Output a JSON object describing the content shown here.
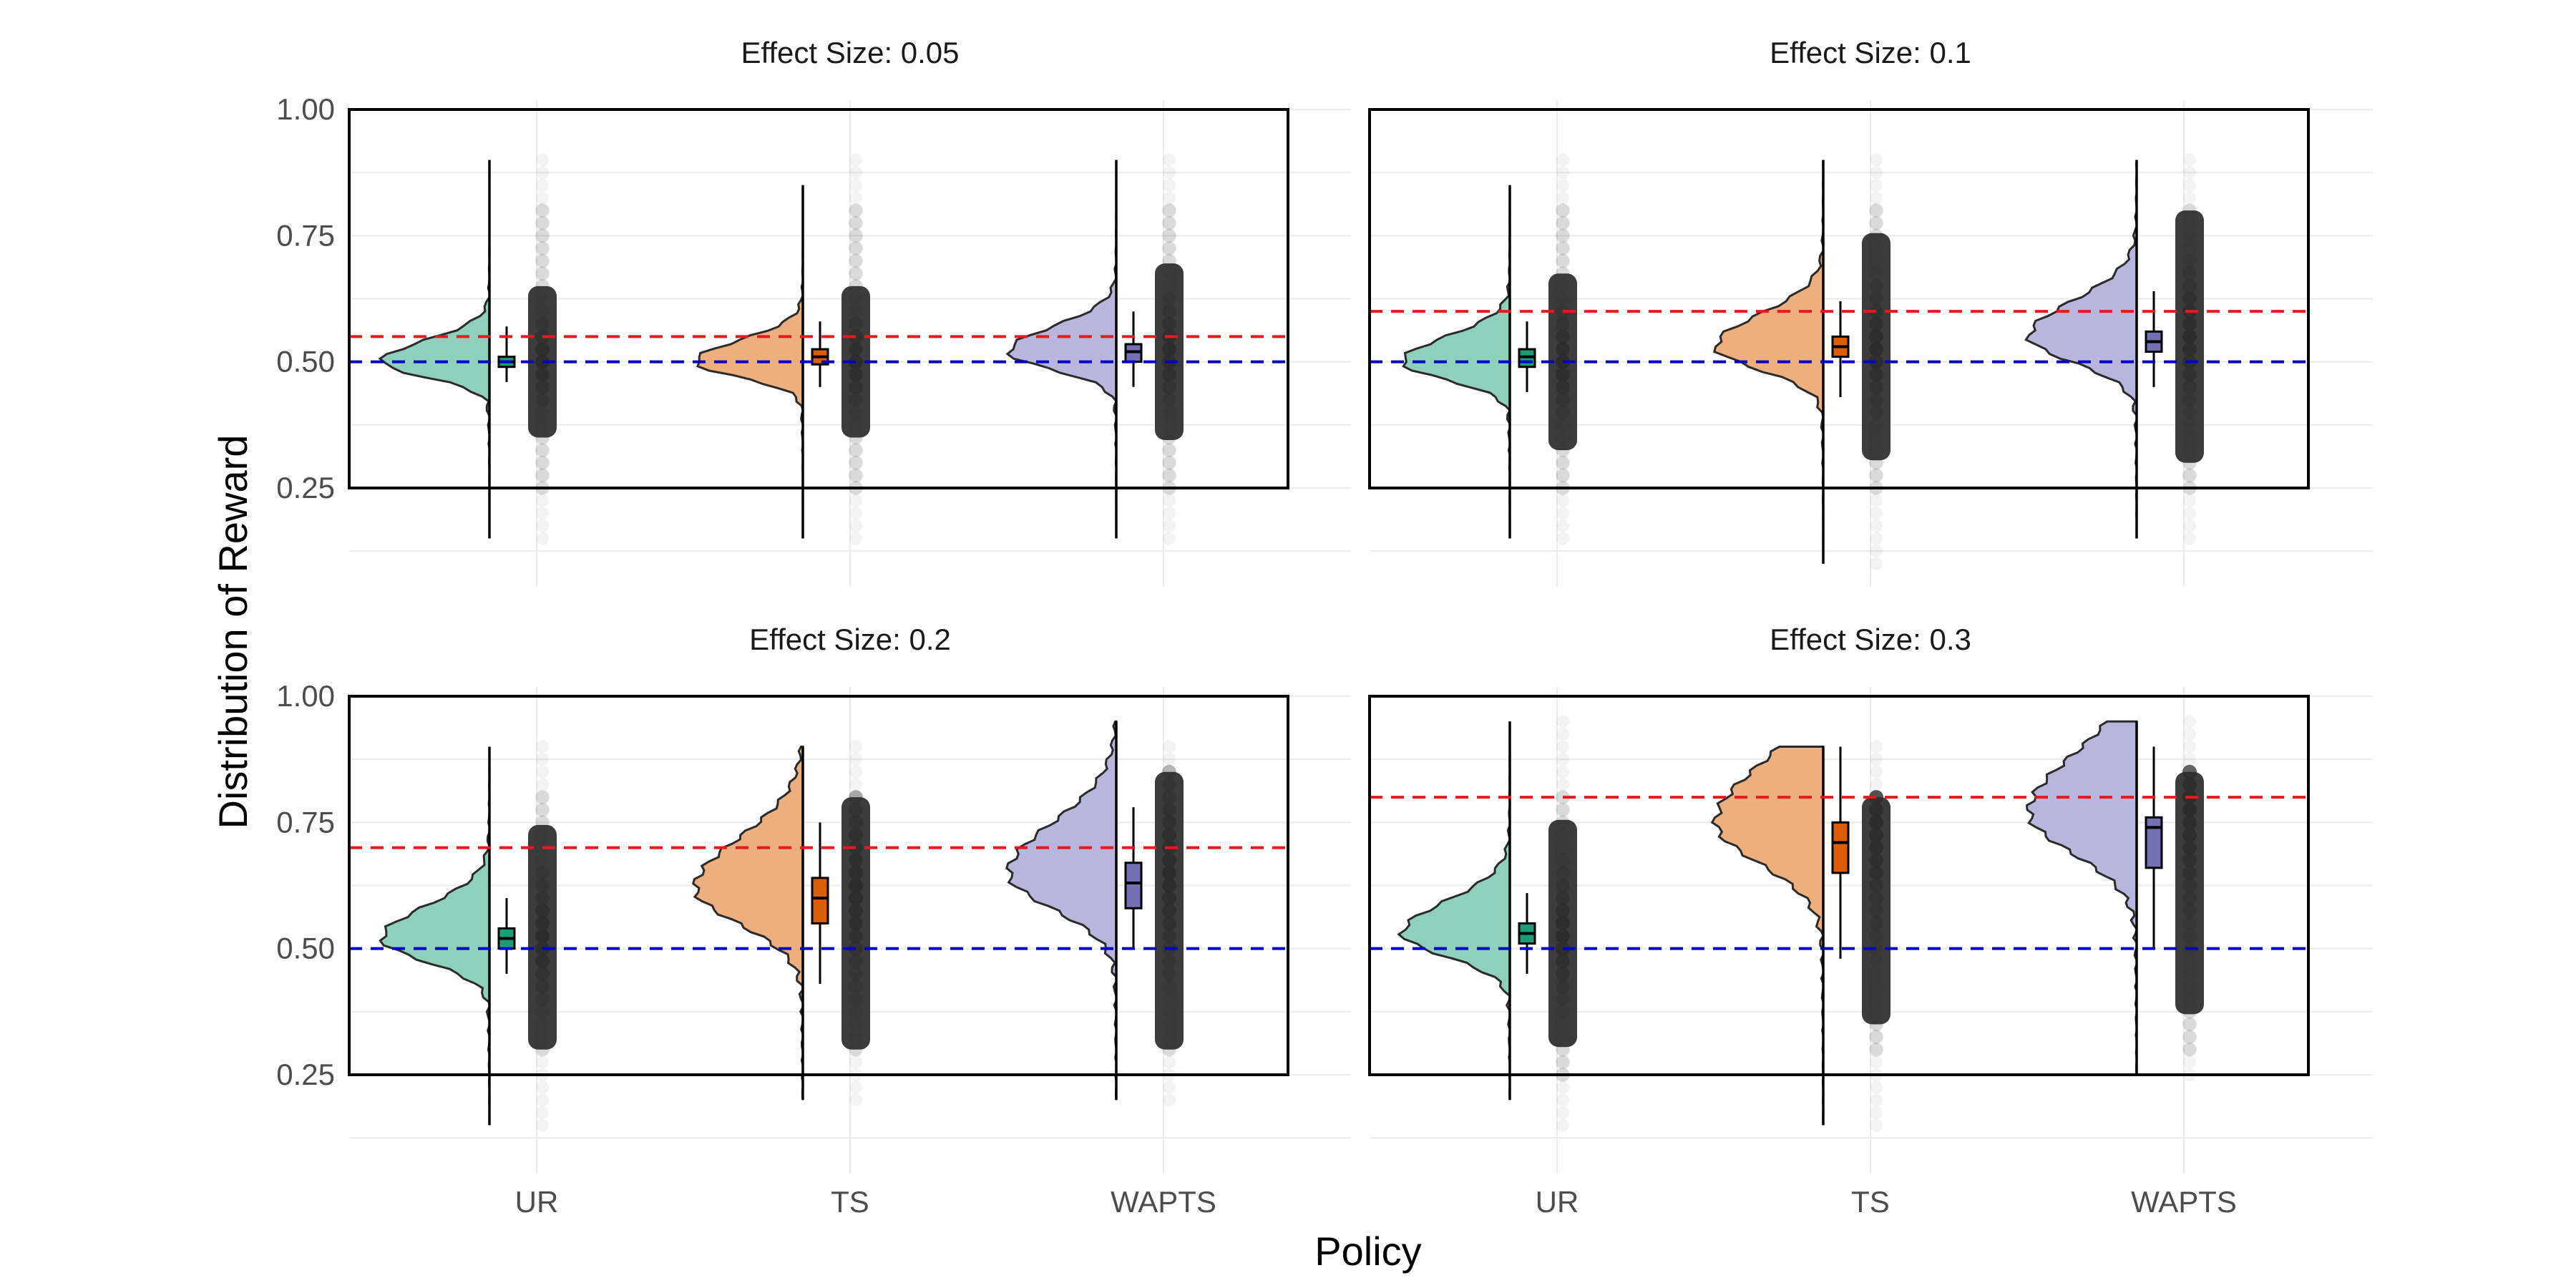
{
  "chart_data": {
    "type": "raincloud",
    "xlabel": "Policy",
    "ylabel": "Distribution of Reward",
    "categories": [
      "UR",
      "TS",
      "WAPTS"
    ],
    "yticks": [
      "0.25",
      "0.50",
      "0.75",
      "1.00"
    ],
    "ylim": [
      0.12,
      1.04
    ],
    "box_range": [
      0.25,
      1.0
    ],
    "baseline": 0.5,
    "colors": {
      "UR": "#1b9e77",
      "TS": "#d95f02",
      "WAPTS": "#7570b3",
      "UR_fill": "#8fd0bc",
      "TS_fill": "#eeaf7e",
      "WAPTS_fill": "#b9b6dd",
      "reference_red": "#e41a1c",
      "baseline_blue": "#0000cc",
      "points": "#2b2b2b"
    },
    "panels": [
      {
        "title": "Effect Size: 0.05",
        "target": 0.55,
        "policies": [
          {
            "name": "UR",
            "mode": 0.5,
            "spread": 0.03,
            "whisker": [
              0.15,
              0.9
            ],
            "box": [
              0.49,
              0.51,
              0.5
            ],
            "small_whisker": [
              0.46,
              0.57
            ],
            "points": [
              0.25,
              0.8
            ],
            "points_faint": [
              0.15,
              0.9
            ]
          },
          {
            "name": "TS",
            "mode": 0.5,
            "spread": 0.03,
            "whisker": [
              0.15,
              0.85
            ],
            "box": [
              0.495,
              0.525,
              0.51
            ],
            "small_whisker": [
              0.45,
              0.58
            ],
            "points": [
              0.25,
              0.8
            ],
            "points_faint": [
              0.15,
              0.9
            ]
          },
          {
            "name": "WAPTS",
            "mode": 0.52,
            "spread": 0.035,
            "whisker": [
              0.15,
              0.9
            ],
            "box": [
              0.5,
              0.535,
              0.52
            ],
            "small_whisker": [
              0.45,
              0.6
            ],
            "points": [
              0.25,
              0.8
            ],
            "points_faint": [
              0.15,
              0.9
            ]
          }
        ]
      },
      {
        "title": "Effect Size: 0.1",
        "target": 0.6,
        "policies": [
          {
            "name": "UR",
            "mode": 0.5,
            "spread": 0.035,
            "whisker": [
              0.15,
              0.85
            ],
            "box": [
              0.49,
              0.525,
              0.51
            ],
            "small_whisker": [
              0.44,
              0.58
            ],
            "points": [
              0.25,
              0.8
            ],
            "points_faint": [
              0.15,
              0.9
            ]
          },
          {
            "name": "TS",
            "mode": 0.53,
            "spread": 0.045,
            "whisker": [
              0.1,
              0.9
            ],
            "box": [
              0.51,
              0.55,
              0.53
            ],
            "small_whisker": [
              0.43,
              0.62
            ],
            "points": [
              0.25,
              0.8
            ],
            "points_faint": [
              0.1,
              0.9
            ]
          },
          {
            "name": "WAPTS",
            "mode": 0.55,
            "spread": 0.05,
            "whisker": [
              0.15,
              0.9
            ],
            "box": [
              0.52,
              0.56,
              0.54
            ],
            "small_whisker": [
              0.45,
              0.64
            ],
            "points": [
              0.25,
              0.8
            ],
            "points_faint": [
              0.15,
              0.9
            ]
          }
        ]
      },
      {
        "title": "Effect Size: 0.2",
        "target": 0.7,
        "policies": [
          {
            "name": "UR",
            "mode": 0.52,
            "spread": 0.045,
            "whisker": [
              0.15,
              0.9
            ],
            "box": [
              0.5,
              0.54,
              0.52
            ],
            "small_whisker": [
              0.45,
              0.6
            ],
            "points": [
              0.3,
              0.8
            ],
            "points_faint": [
              0.15,
              0.9
            ]
          },
          {
            "name": "TS",
            "mode": 0.62,
            "spread": 0.07,
            "whisker": [
              0.2,
              0.9
            ],
            "box": [
              0.55,
              0.64,
              0.6
            ],
            "small_whisker": [
              0.43,
              0.75
            ],
            "points": [
              0.3,
              0.8
            ],
            "points_faint": [
              0.2,
              0.9
            ]
          },
          {
            "name": "WAPTS",
            "mode": 0.65,
            "spread": 0.07,
            "whisker": [
              0.2,
              0.95
            ],
            "box": [
              0.58,
              0.67,
              0.63
            ],
            "small_whisker": [
              0.5,
              0.78
            ],
            "points": [
              0.3,
              0.85
            ],
            "points_faint": [
              0.2,
              0.9
            ]
          }
        ]
      },
      {
        "title": "Effect Size: 0.3",
        "target": 0.8,
        "policies": [
          {
            "name": "UR",
            "mode": 0.53,
            "spread": 0.045,
            "whisker": [
              0.2,
              0.95
            ],
            "box": [
              0.51,
              0.55,
              0.53
            ],
            "small_whisker": [
              0.45,
              0.61
            ],
            "points": [
              0.25,
              0.8
            ],
            "points_faint": [
              0.15,
              0.95
            ]
          },
          {
            "name": "TS",
            "mode": 0.75,
            "spread": 0.08,
            "whisker": [
              0.15,
              0.9
            ],
            "box": [
              0.65,
              0.75,
              0.71
            ],
            "small_whisker": [
              0.48,
              0.9
            ],
            "points": [
              0.3,
              0.8
            ],
            "points_faint": [
              0.15,
              0.9
            ]
          },
          {
            "name": "WAPTS",
            "mode": 0.77,
            "spread": 0.08,
            "whisker": [
              0.25,
              0.95
            ],
            "box": [
              0.66,
              0.76,
              0.74
            ],
            "small_whisker": [
              0.5,
              0.9
            ],
            "points": [
              0.3,
              0.85
            ],
            "points_faint": [
              0.25,
              0.95
            ]
          }
        ]
      }
    ]
  }
}
